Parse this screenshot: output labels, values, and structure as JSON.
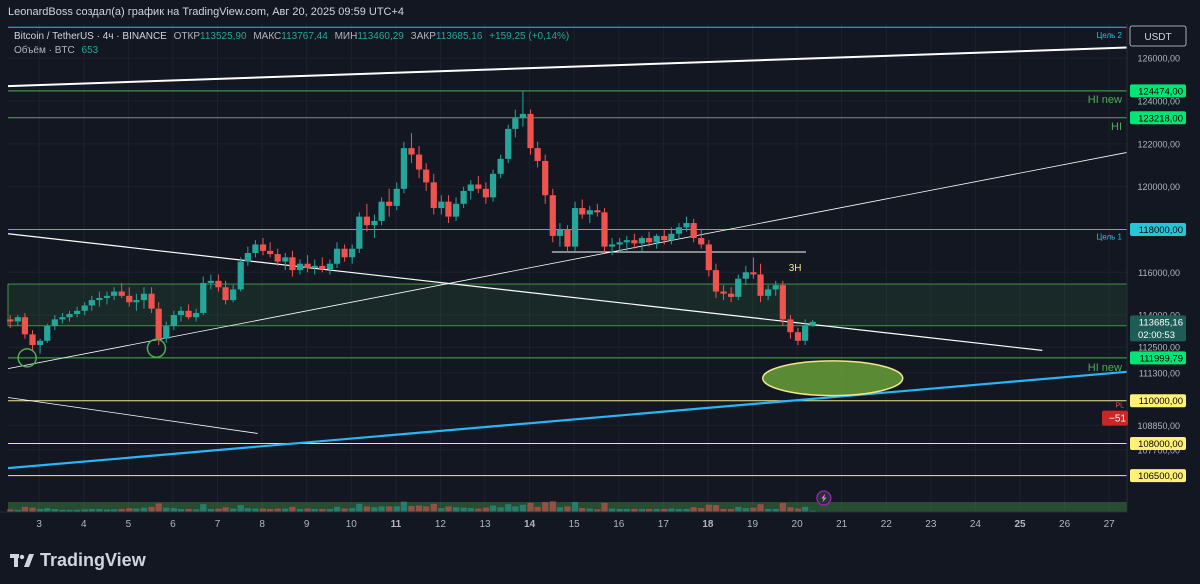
{
  "header": {
    "title": "LeonardBoss создал(а) график на TradingView.com, Авг 20, 2025 09:59 UTC+4"
  },
  "symbol_bar": {
    "name": "Bitcoin / TetherUS · 4ч · BINANCE",
    "open_label": "ОТКР",
    "open": "113525,90",
    "high_label": "МАКС",
    "high": "113767,44",
    "low_label": "МИН",
    "low": "113460,29",
    "close_label": "ЗАКР",
    "close": "113685,16",
    "change": "+159,25 (+0,14%)",
    "volume_label": "Объём · BTC",
    "volume": "653"
  },
  "currency": "USDT",
  "countdown": "02:00:53",
  "footer": {
    "brand": "TradingView"
  },
  "colors": {
    "up": "#26a69a",
    "down": "#ef5350",
    "background": "#131722",
    "green_level": "#4caf50",
    "cyan_level": "#26c6da",
    "yellow_level": "#f0e68c",
    "trend_blue": "#29b6f6"
  },
  "chart_data": {
    "type": "candlestick",
    "ylim": [
      104800,
      127600
    ],
    "y_ticks": [
      126000,
      124000,
      122000,
      120000,
      118000,
      116000,
      114000,
      112500,
      111300,
      110000,
      108850,
      107700,
      106500
    ],
    "y_tick_labels": [
      "126000,00",
      "124000,00",
      "122000,00",
      "120000,00",
      "118000,00",
      "116000,00",
      "114000,00",
      "112500,00",
      "111300,00",
      "110000,00",
      "108850,00",
      "107700,00",
      "106500,00"
    ],
    "x_ticks": [
      3,
      4,
      5,
      6,
      7,
      8,
      9,
      10,
      11,
      12,
      13,
      14,
      15,
      16,
      17,
      18,
      19,
      20,
      21,
      22,
      23,
      24,
      25,
      26,
      27
    ],
    "x_tick_labels": [
      "3",
      "4",
      "5",
      "6",
      "7",
      "8",
      "9",
      "10",
      "11",
      "12",
      "13",
      "14",
      "15",
      "16",
      "17",
      "18",
      "19",
      "20",
      "21",
      "22",
      "23",
      "24",
      "25",
      "26",
      "27"
    ],
    "x_bold_ticks": [
      11,
      14,
      18,
      25
    ],
    "xlim": [
      2.3,
      27.4
    ],
    "price_labels": [
      {
        "value": 124474,
        "label": "124474,00",
        "kind": "green"
      },
      {
        "value": 123218,
        "label": "123218,00",
        "kind": "green"
      },
      {
        "value": 118000,
        "label": "118000,00",
        "kind": "cyan"
      },
      {
        "value": 113685,
        "label": "113685,16",
        "kind": "teal"
      },
      {
        "value": 111999.79,
        "label": "111999,79",
        "kind": "green"
      },
      {
        "value": 110000,
        "label": "110000,00",
        "kind": "yellow"
      },
      {
        "value": 108000,
        "label": "108000,00",
        "kind": "yellow"
      },
      {
        "value": 106500,
        "label": "106500,00",
        "kind": "yellow"
      }
    ],
    "pl_label": {
      "title": "PL",
      "value": "−51"
    },
    "annotations": [
      {
        "text": "Цель 2",
        "value": 127450,
        "kind": "cyan-small"
      },
      {
        "text": "HI new",
        "value": 124474,
        "kind": "green"
      },
      {
        "text": "HI",
        "value": 123218,
        "kind": "green"
      },
      {
        "text": "Цель 1",
        "value": 118000,
        "kind": "cyan-small"
      },
      {
        "text": "3H",
        "value": 116250,
        "kind": "yellow"
      },
      {
        "text": "HI new",
        "value": 111999.79,
        "kind": "green"
      }
    ],
    "levels": [
      {
        "value": 127450,
        "kind": "cyan"
      },
      {
        "value": 124474,
        "kind": "green"
      },
      {
        "value": 123218,
        "kind": "green"
      },
      {
        "value": 118000,
        "kind": "cyan"
      },
      {
        "value": 111999.79,
        "kind": "green"
      },
      {
        "value": 110000,
        "kind": "yellow"
      },
      {
        "value": 108000,
        "kind": "yellow"
      },
      {
        "value": 106500,
        "kind": "yellow"
      }
    ],
    "zone": {
      "from": 113500,
      "to": 115450
    },
    "ellipse": {
      "x": 20.8,
      "y": 111050,
      "rx": 1.57,
      "ry": 810
    },
    "trend_lines": [
      {
        "x1": 2.3,
        "y1": 124700,
        "x2": 27.4,
        "y2": 126500,
        "color": "#ffffff",
        "width": 2
      },
      {
        "x1": 2.3,
        "y1": 111500,
        "x2": 27.4,
        "y2": 121600,
        "color": "#ffffff",
        "width": 0.8
      },
      {
        "x1": 2.3,
        "y1": 117800,
        "x2": 25.5,
        "y2": 112350,
        "color": "#ffffff",
        "width": 1.2
      },
      {
        "x1": 2.3,
        "y1": 110150,
        "x2": 7.9,
        "y2": 108470,
        "color": "#ffffff",
        "width": 0.8
      },
      {
        "x1": 2.3,
        "y1": 106850,
        "x2": 27.4,
        "y2": 111350,
        "color": "#29b6f6",
        "width": 2.2
      },
      {
        "x1": 14.5,
        "y1": 116950,
        "x2": 20.2,
        "y2": 116950,
        "color": "#ffffff",
        "width": 1
      }
    ],
    "circles": [
      {
        "x": 2.73,
        "y": 112000
      },
      {
        "x": 5.63,
        "y": 112450
      }
    ],
    "candles": [
      {
        "x": 2.35,
        "o": 113800,
        "h": 114000,
        "l": 113400,
        "c": 113700
      },
      {
        "x": 2.52,
        "o": 113700,
        "h": 114000,
        "l": 113500,
        "c": 113900
      },
      {
        "x": 2.68,
        "o": 113900,
        "h": 114100,
        "l": 112900,
        "c": 113100
      },
      {
        "x": 2.85,
        "o": 113100,
        "h": 113300,
        "l": 112300,
        "c": 112600
      },
      {
        "x": 3.02,
        "o": 112600,
        "h": 112900,
        "l": 112200,
        "c": 112800
      },
      {
        "x": 3.18,
        "o": 112800,
        "h": 113600,
        "l": 112700,
        "c": 113500
      },
      {
        "x": 3.35,
        "o": 113500,
        "h": 114000,
        "l": 113300,
        "c": 113800
      },
      {
        "x": 3.52,
        "o": 113800,
        "h": 114100,
        "l": 113600,
        "c": 113900
      },
      {
        "x": 3.68,
        "o": 113900,
        "h": 114200,
        "l": 113700,
        "c": 114050
      },
      {
        "x": 3.85,
        "o": 114050,
        "h": 114400,
        "l": 113900,
        "c": 114200
      },
      {
        "x": 4.02,
        "o": 114200,
        "h": 114600,
        "l": 114000,
        "c": 114450
      },
      {
        "x": 4.18,
        "o": 114450,
        "h": 114900,
        "l": 114200,
        "c": 114700
      },
      {
        "x": 4.35,
        "o": 114700,
        "h": 115100,
        "l": 114400,
        "c": 114800
      },
      {
        "x": 4.52,
        "o": 114800,
        "h": 115100,
        "l": 114500,
        "c": 114900
      },
      {
        "x": 4.68,
        "o": 114900,
        "h": 115300,
        "l": 114700,
        "c": 115100
      },
      {
        "x": 4.85,
        "o": 115100,
        "h": 115500,
        "l": 114800,
        "c": 114900
      },
      {
        "x": 5.02,
        "o": 114900,
        "h": 115300,
        "l": 114400,
        "c": 114600
      },
      {
        "x": 5.18,
        "o": 114600,
        "h": 115000,
        "l": 114200,
        "c": 114700
      },
      {
        "x": 5.35,
        "o": 114700,
        "h": 115300,
        "l": 114300,
        "c": 115000
      },
      {
        "x": 5.52,
        "o": 115000,
        "h": 115300,
        "l": 114100,
        "c": 114300
      },
      {
        "x": 5.68,
        "o": 114300,
        "h": 114600,
        "l": 112600,
        "c": 112900
      },
      {
        "x": 5.85,
        "o": 112900,
        "h": 113700,
        "l": 112700,
        "c": 113500
      },
      {
        "x": 6.02,
        "o": 113500,
        "h": 114200,
        "l": 113300,
        "c": 114000
      },
      {
        "x": 6.18,
        "o": 114000,
        "h": 114400,
        "l": 113700,
        "c": 114200
      },
      {
        "x": 6.35,
        "o": 114200,
        "h": 114500,
        "l": 113800,
        "c": 113900
      },
      {
        "x": 6.52,
        "o": 113900,
        "h": 114300,
        "l": 113700,
        "c": 114100
      },
      {
        "x": 6.68,
        "o": 114100,
        "h": 115800,
        "l": 114000,
        "c": 115500
      },
      {
        "x": 6.85,
        "o": 115500,
        "h": 115900,
        "l": 115200,
        "c": 115600
      },
      {
        "x": 7.02,
        "o": 115600,
        "h": 115900,
        "l": 115100,
        "c": 115300
      },
      {
        "x": 7.18,
        "o": 115300,
        "h": 115600,
        "l": 114500,
        "c": 114700
      },
      {
        "x": 7.35,
        "o": 114700,
        "h": 115400,
        "l": 114600,
        "c": 115200
      },
      {
        "x": 7.52,
        "o": 115200,
        "h": 116700,
        "l": 115100,
        "c": 116500
      },
      {
        "x": 7.68,
        "o": 116500,
        "h": 117200,
        "l": 116300,
        "c": 116900
      },
      {
        "x": 7.85,
        "o": 116900,
        "h": 117500,
        "l": 116700,
        "c": 117300
      },
      {
        "x": 8.02,
        "o": 117300,
        "h": 117600,
        "l": 116800,
        "c": 117000
      },
      {
        "x": 8.18,
        "o": 117000,
        "h": 117400,
        "l": 116700,
        "c": 116850
      },
      {
        "x": 8.35,
        "o": 116850,
        "h": 117100,
        "l": 116300,
        "c": 116500
      },
      {
        "x": 8.52,
        "o": 116500,
        "h": 116900,
        "l": 116100,
        "c": 116700
      },
      {
        "x": 8.68,
        "o": 116700,
        "h": 117000,
        "l": 115800,
        "c": 116100
      },
      {
        "x": 8.85,
        "o": 116100,
        "h": 116600,
        "l": 115900,
        "c": 116400
      },
      {
        "x": 9.02,
        "o": 116400,
        "h": 116800,
        "l": 116000,
        "c": 116200
      },
      {
        "x": 9.18,
        "o": 116200,
        "h": 116600,
        "l": 115900,
        "c": 116300
      },
      {
        "x": 9.35,
        "o": 116300,
        "h": 116700,
        "l": 116000,
        "c": 116150
      },
      {
        "x": 9.52,
        "o": 116150,
        "h": 116600,
        "l": 115900,
        "c": 116400
      },
      {
        "x": 9.68,
        "o": 116400,
        "h": 117400,
        "l": 116200,
        "c": 117100
      },
      {
        "x": 9.85,
        "o": 117100,
        "h": 117300,
        "l": 116500,
        "c": 116700
      },
      {
        "x": 10.02,
        "o": 116700,
        "h": 117300,
        "l": 116400,
        "c": 117100
      },
      {
        "x": 10.18,
        "o": 117100,
        "h": 118800,
        "l": 116900,
        "c": 118600
      },
      {
        "x": 10.35,
        "o": 118600,
        "h": 119200,
        "l": 117900,
        "c": 118200
      },
      {
        "x": 10.52,
        "o": 118200,
        "h": 118700,
        "l": 117600,
        "c": 118400
      },
      {
        "x": 10.68,
        "o": 118400,
        "h": 119500,
        "l": 118200,
        "c": 119300
      },
      {
        "x": 10.85,
        "o": 119300,
        "h": 119900,
        "l": 118600,
        "c": 119100
      },
      {
        "x": 11.02,
        "o": 119100,
        "h": 120200,
        "l": 118900,
        "c": 119900
      },
      {
        "x": 11.18,
        "o": 119900,
        "h": 122100,
        "l": 119700,
        "c": 121800
      },
      {
        "x": 11.35,
        "o": 121800,
        "h": 122500,
        "l": 121100,
        "c": 121500
      },
      {
        "x": 11.52,
        "o": 121500,
        "h": 121900,
        "l": 120400,
        "c": 120800
      },
      {
        "x": 11.68,
        "o": 120800,
        "h": 121100,
        "l": 119800,
        "c": 120200
      },
      {
        "x": 11.85,
        "o": 120200,
        "h": 120600,
        "l": 118700,
        "c": 119000
      },
      {
        "x": 12.02,
        "o": 119000,
        "h": 119600,
        "l": 118700,
        "c": 119300
      },
      {
        "x": 12.18,
        "o": 119300,
        "h": 119600,
        "l": 118300,
        "c": 118600
      },
      {
        "x": 12.35,
        "o": 118600,
        "h": 119500,
        "l": 118400,
        "c": 119200
      },
      {
        "x": 12.52,
        "o": 119200,
        "h": 120000,
        "l": 119000,
        "c": 119800
      },
      {
        "x": 12.68,
        "o": 119800,
        "h": 120300,
        "l": 119400,
        "c": 120100
      },
      {
        "x": 12.85,
        "o": 120100,
        "h": 120500,
        "l": 119700,
        "c": 119900
      },
      {
        "x": 13.02,
        "o": 119900,
        "h": 120200,
        "l": 119200,
        "c": 119500
      },
      {
        "x": 13.18,
        "o": 119500,
        "h": 120800,
        "l": 119300,
        "c": 120600
      },
      {
        "x": 13.35,
        "o": 120600,
        "h": 121500,
        "l": 120400,
        "c": 121300
      },
      {
        "x": 13.52,
        "o": 121300,
        "h": 122900,
        "l": 121100,
        "c": 122700
      },
      {
        "x": 13.68,
        "o": 122700,
        "h": 123600,
        "l": 122300,
        "c": 123200
      },
      {
        "x": 13.85,
        "o": 123200,
        "h": 124474,
        "l": 122800,
        "c": 123400
      },
      {
        "x": 14.02,
        "o": 123400,
        "h": 123600,
        "l": 121500,
        "c": 121800
      },
      {
        "x": 14.18,
        "o": 121800,
        "h": 122100,
        "l": 120900,
        "c": 121200
      },
      {
        "x": 14.35,
        "o": 121200,
        "h": 121500,
        "l": 119200,
        "c": 119600
      },
      {
        "x": 14.52,
        "o": 119600,
        "h": 119900,
        "l": 117400,
        "c": 117700
      },
      {
        "x": 14.68,
        "o": 117700,
        "h": 118300,
        "l": 117200,
        "c": 118000
      },
      {
        "x": 14.85,
        "o": 118000,
        "h": 118200,
        "l": 116900,
        "c": 117200
      },
      {
        "x": 15.02,
        "o": 117200,
        "h": 119300,
        "l": 117000,
        "c": 119000
      },
      {
        "x": 15.18,
        "o": 119000,
        "h": 119400,
        "l": 118500,
        "c": 118700
      },
      {
        "x": 15.35,
        "o": 118700,
        "h": 119100,
        "l": 118300,
        "c": 118900
      },
      {
        "x": 15.52,
        "o": 118900,
        "h": 119200,
        "l": 118600,
        "c": 118800
      },
      {
        "x": 15.68,
        "o": 118800,
        "h": 119000,
        "l": 116900,
        "c": 117200
      },
      {
        "x": 15.85,
        "o": 117200,
        "h": 117600,
        "l": 116800,
        "c": 117300
      },
      {
        "x": 16.02,
        "o": 117300,
        "h": 117600,
        "l": 116900,
        "c": 117400
      },
      {
        "x": 16.18,
        "o": 117400,
        "h": 117700,
        "l": 117000,
        "c": 117500
      },
      {
        "x": 16.35,
        "o": 117500,
        "h": 117800,
        "l": 117100,
        "c": 117350
      },
      {
        "x": 16.52,
        "o": 117350,
        "h": 117700,
        "l": 117000,
        "c": 117600
      },
      {
        "x": 16.68,
        "o": 117600,
        "h": 117900,
        "l": 117200,
        "c": 117400
      },
      {
        "x": 16.85,
        "o": 117400,
        "h": 117800,
        "l": 117100,
        "c": 117700
      },
      {
        "x": 17.02,
        "o": 117700,
        "h": 118000,
        "l": 117300,
        "c": 117500
      },
      {
        "x": 17.18,
        "o": 117500,
        "h": 118100,
        "l": 117300,
        "c": 117800
      },
      {
        "x": 17.35,
        "o": 117800,
        "h": 118300,
        "l": 117600,
        "c": 118100
      },
      {
        "x": 17.52,
        "o": 118100,
        "h": 118600,
        "l": 117900,
        "c": 118300
      },
      {
        "x": 17.68,
        "o": 118300,
        "h": 118500,
        "l": 117400,
        "c": 117600
      },
      {
        "x": 17.85,
        "o": 117600,
        "h": 118000,
        "l": 117100,
        "c": 117300
      },
      {
        "x": 18.02,
        "o": 117300,
        "h": 117500,
        "l": 115800,
        "c": 116100
      },
      {
        "x": 18.18,
        "o": 116100,
        "h": 116400,
        "l": 114800,
        "c": 115100
      },
      {
        "x": 18.35,
        "o": 115100,
        "h": 115400,
        "l": 114700,
        "c": 115000
      },
      {
        "x": 18.52,
        "o": 115000,
        "h": 115300,
        "l": 114600,
        "c": 114850
      },
      {
        "x": 18.68,
        "o": 114850,
        "h": 115900,
        "l": 114700,
        "c": 115700
      },
      {
        "x": 18.85,
        "o": 115700,
        "h": 116300,
        "l": 115400,
        "c": 116000
      },
      {
        "x": 19.02,
        "o": 116000,
        "h": 116700,
        "l": 115700,
        "c": 115900
      },
      {
        "x": 19.18,
        "o": 115900,
        "h": 116400,
        "l": 114600,
        "c": 114900
      },
      {
        "x": 19.35,
        "o": 114900,
        "h": 115400,
        "l": 114700,
        "c": 115200
      },
      {
        "x": 19.52,
        "o": 115200,
        "h": 115600,
        "l": 114900,
        "c": 115400
      },
      {
        "x": 19.68,
        "o": 115400,
        "h": 115600,
        "l": 113500,
        "c": 113800
      },
      {
        "x": 19.85,
        "o": 113800,
        "h": 114000,
        "l": 112900,
        "c": 113200
      },
      {
        "x": 20.02,
        "o": 113200,
        "h": 113400,
        "l": 112600,
        "c": 112800
      },
      {
        "x": 20.18,
        "o": 112800,
        "h": 113800,
        "l": 112600,
        "c": 113525
      },
      {
        "x": 20.35,
        "o": 113525,
        "h": 113767,
        "l": 113460,
        "c": 113685
      }
    ],
    "volume_ylim": [
      0,
      1000
    ]
  }
}
